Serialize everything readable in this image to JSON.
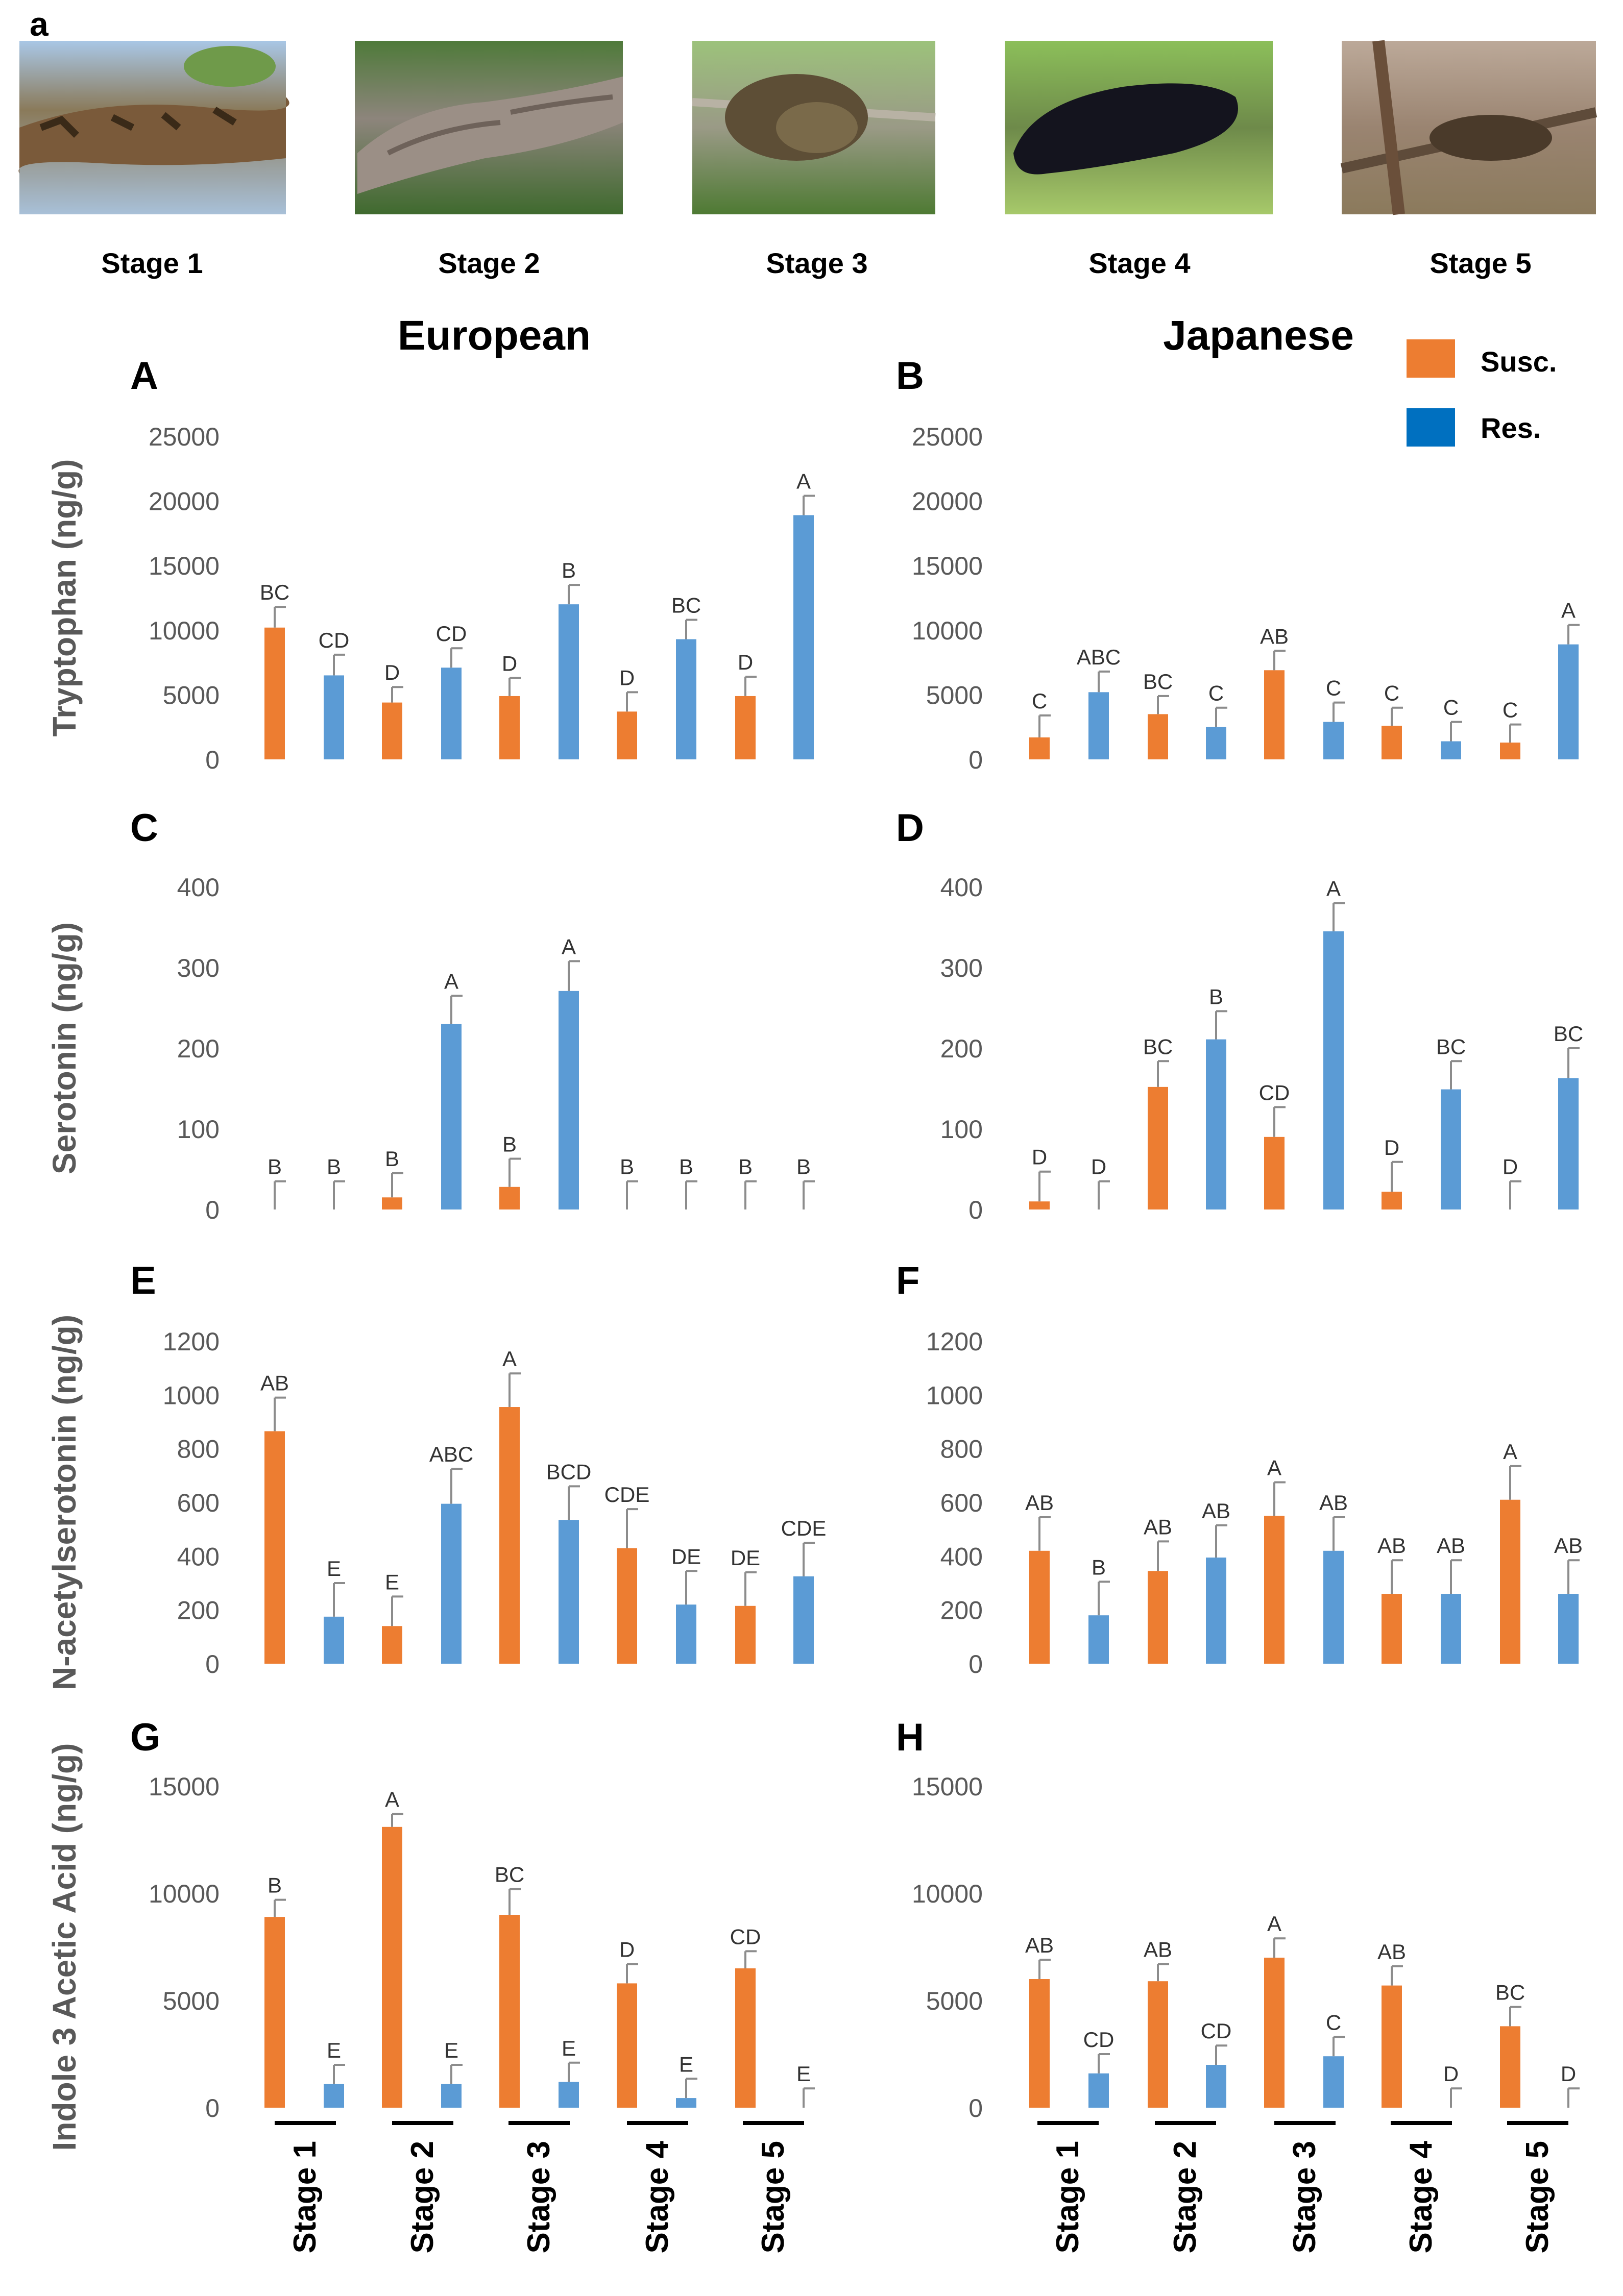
{
  "figure": {
    "panel_a_label": "a",
    "photo_stages": [
      "Stage 1",
      "Stage 2",
      "Stage 3",
      "Stage 4",
      "Stage 5"
    ],
    "column_titles": [
      "European",
      "Japanese"
    ],
    "legend": [
      {
        "label": "Susc.",
        "color": "#ED7D31"
      },
      {
        "label": "Res.",
        "color": "#0070C0"
      }
    ],
    "colors": {
      "susc": "#ED7D31",
      "res": "#5B9BD5",
      "error": "#8c8c8c",
      "axis_text": "#595959"
    },
    "x_stage_labels": [
      "Stage 1",
      "Stage 2",
      "Stage 3",
      "Stage 4",
      "Stage 5"
    ]
  },
  "chart_data": [
    {
      "id": "A",
      "type": "bar",
      "label": "A",
      "ylabel": "Tryptophan (ng/g)",
      "ylim": [
        0,
        25000
      ],
      "yticks": [
        "0",
        "5000",
        "10000",
        "15000",
        "20000",
        "25000"
      ],
      "categories": [
        "Stage 1",
        "Stage 2",
        "Stage 3",
        "Stage 4",
        "Stage 5"
      ],
      "series": [
        {
          "name": "Susc.",
          "values": [
            10200,
            4400,
            4900,
            3700,
            4900
          ],
          "errors": [
            1600,
            1200,
            1400,
            1500,
            1500
          ],
          "letters": [
            "BC",
            "D",
            "D",
            "D",
            "D"
          ]
        },
        {
          "name": "Res.",
          "values": [
            6500,
            7100,
            12000,
            9300,
            18900
          ],
          "errors": [
            1600,
            1500,
            1500,
            1500,
            1500
          ],
          "letters": [
            "CD",
            "CD",
            "B",
            "BC",
            "A"
          ]
        }
      ]
    },
    {
      "id": "B",
      "type": "bar",
      "label": "B",
      "ylabel": "",
      "ylim": [
        0,
        25000
      ],
      "yticks": [
        "0",
        "5000",
        "10000",
        "15000",
        "20000",
        "25000"
      ],
      "categories": [
        "Stage 1",
        "Stage 2",
        "Stage 3",
        "Stage 4",
        "Stage 5"
      ],
      "series": [
        {
          "name": "Susc.",
          "values": [
            1700,
            3500,
            6900,
            2600,
            1300
          ],
          "errors": [
            1700,
            1400,
            1500,
            1400,
            1400
          ],
          "letters": [
            "C",
            "BC",
            "AB",
            "C",
            "C"
          ]
        },
        {
          "name": "Res.",
          "values": [
            5200,
            2500,
            2900,
            1400,
            8900
          ],
          "errors": [
            1600,
            1500,
            1500,
            1500,
            1500
          ],
          "letters": [
            "ABC",
            "C",
            "C",
            "C",
            "A"
          ]
        }
      ]
    },
    {
      "id": "C",
      "type": "bar",
      "label": "C",
      "ylabel": "Serotonin (ng/g)",
      "ylim": [
        0,
        400
      ],
      "yticks": [
        "0",
        "100",
        "200",
        "300",
        "400"
      ],
      "categories": [
        "Stage 1",
        "Stage 2",
        "Stage 3",
        "Stage 4",
        "Stage 5"
      ],
      "series": [
        {
          "name": "Susc.",
          "values": [
            0,
            15,
            28,
            0,
            0
          ],
          "errors": [
            35,
            30,
            35,
            35,
            35
          ],
          "letters": [
            "B",
            "B",
            "B",
            "B",
            "B"
          ]
        },
        {
          "name": "Res.",
          "values": [
            0,
            230,
            271,
            0,
            0
          ],
          "errors": [
            35,
            35,
            37,
            35,
            35
          ],
          "letters": [
            "B",
            "A",
            "A",
            "B",
            "B"
          ]
        }
      ]
    },
    {
      "id": "D",
      "type": "bar",
      "label": "D",
      "ylabel": "",
      "ylim": [
        0,
        400
      ],
      "yticks": [
        "0",
        "100",
        "200",
        "300",
        "400"
      ],
      "categories": [
        "Stage 1",
        "Stage 2",
        "Stage 3",
        "Stage 4",
        "Stage 5"
      ],
      "series": [
        {
          "name": "Susc.",
          "values": [
            10,
            152,
            90,
            22,
            0
          ],
          "errors": [
            37,
            32,
            37,
            37,
            35
          ],
          "letters": [
            "D",
            "BC",
            "CD",
            "D",
            "D"
          ]
        },
        {
          "name": "Res.",
          "values": [
            0,
            211,
            345,
            149,
            163
          ],
          "errors": [
            35,
            35,
            35,
            35,
            37
          ],
          "letters": [
            "D",
            "B",
            "A",
            "BC",
            "BC"
          ]
        }
      ]
    },
    {
      "id": "E",
      "type": "bar",
      "label": "E",
      "ylabel": "N-acetylserotonin (ng/g)",
      "ylim": [
        0,
        1200
      ],
      "yticks": [
        "0",
        "200",
        "400",
        "600",
        "800",
        "1000",
        "1200"
      ],
      "categories": [
        "Stage 1",
        "Stage 2",
        "Stage 3",
        "Stage 4",
        "Stage 5"
      ],
      "series": [
        {
          "name": "Susc.",
          "values": [
            865,
            140,
            955,
            430,
            215
          ],
          "errors": [
            125,
            110,
            125,
            145,
            125
          ],
          "letters": [
            "AB",
            "E",
            "A",
            "CDE",
            "DE"
          ]
        },
        {
          "name": "Res.",
          "values": [
            175,
            595,
            535,
            220,
            325
          ],
          "errors": [
            125,
            130,
            125,
            125,
            125
          ],
          "letters": [
            "E",
            "ABC",
            "BCD",
            "DE",
            "CDE"
          ]
        }
      ]
    },
    {
      "id": "F",
      "type": "bar",
      "label": "F",
      "ylabel": "",
      "ylim": [
        0,
        1200
      ],
      "yticks": [
        "0",
        "200",
        "400",
        "600",
        "800",
        "1000",
        "1200"
      ],
      "categories": [
        "Stage 1",
        "Stage 2",
        "Stage 3",
        "Stage 4",
        "Stage 5"
      ],
      "series": [
        {
          "name": "Susc.",
          "values": [
            420,
            345,
            550,
            260,
            610
          ],
          "errors": [
            125,
            110,
            125,
            125,
            125
          ],
          "letters": [
            "AB",
            "AB",
            "A",
            "AB",
            "A"
          ]
        },
        {
          "name": "Res.",
          "values": [
            180,
            395,
            420,
            260,
            260
          ],
          "errors": [
            125,
            120,
            125,
            125,
            125
          ],
          "letters": [
            "B",
            "AB",
            "AB",
            "AB",
            "AB"
          ]
        }
      ]
    },
    {
      "id": "G",
      "type": "bar",
      "label": "G",
      "ylabel": "Indole 3 Acetic Acid (ng/g)",
      "ylim": [
        0,
        15000
      ],
      "yticks": [
        "0",
        "5000",
        "10000",
        "15000"
      ],
      "categories": [
        "Stage 1",
        "Stage 2",
        "Stage 3",
        "Stage 4",
        "Stage 5"
      ],
      "series": [
        {
          "name": "Susc.",
          "values": [
            8900,
            13100,
            9000,
            5800,
            6500
          ],
          "errors": [
            800,
            600,
            1200,
            900,
            800
          ],
          "letters": [
            "B",
            "A",
            "BC",
            "D",
            "CD"
          ]
        },
        {
          "name": "Res.",
          "values": [
            1100,
            1100,
            1200,
            450,
            0
          ],
          "errors": [
            900,
            900,
            900,
            900,
            900
          ],
          "letters": [
            "E",
            "E",
            "E",
            "E",
            "E"
          ]
        }
      ]
    },
    {
      "id": "H",
      "type": "bar",
      "label": "H",
      "ylabel": "",
      "ylim": [
        0,
        15000
      ],
      "yticks": [
        "0",
        "5000",
        "10000",
        "15000"
      ],
      "categories": [
        "Stage 1",
        "Stage 2",
        "Stage 3",
        "Stage 4",
        "Stage 5"
      ],
      "series": [
        {
          "name": "Susc.",
          "values": [
            6000,
            5900,
            7000,
            5700,
            3800
          ],
          "errors": [
            900,
            800,
            900,
            900,
            900
          ],
          "letters": [
            "AB",
            "AB",
            "A",
            "AB",
            "BC"
          ]
        },
        {
          "name": "Res.",
          "values": [
            1600,
            2000,
            2400,
            0,
            0
          ],
          "errors": [
            900,
            900,
            900,
            900,
            900
          ],
          "letters": [
            "CD",
            "CD",
            "C",
            "D",
            "D"
          ]
        }
      ]
    }
  ]
}
